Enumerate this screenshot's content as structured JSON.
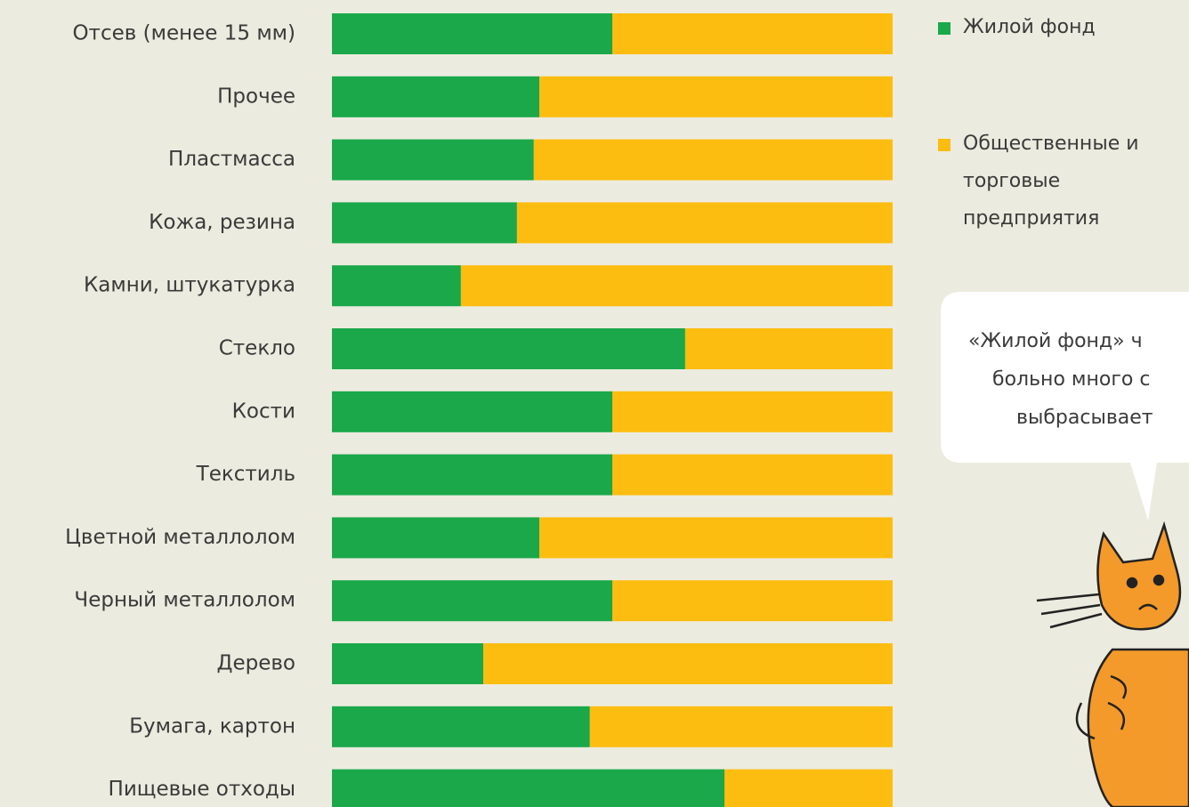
{
  "chart_data": {
    "type": "stacked_barh",
    "categories": [
      "Отсев (менее 15 мм)",
      "Прочее",
      "Пластмасса",
      "Кожа, резина",
      "Камни, штукатурка",
      "Стекло",
      "Кости",
      "Текстиль",
      "Цветной металлолом",
      "Черный металлолом",
      "Дерево",
      "Бумага, картон",
      "Пищевые отходы"
    ],
    "series": [
      {
        "name": "Жилой фонд",
        "color": "#1aa84a",
        "values": [
          50,
          37,
          36,
          33,
          23,
          63,
          50,
          50,
          37,
          50,
          27,
          46,
          70
        ]
      },
      {
        "name": "Общественные и торговые предприятия",
        "color": "#fdbd10",
        "values": [
          50,
          63,
          64,
          67,
          77,
          37,
          50,
          50,
          63,
          50,
          73,
          54,
          30
        ]
      }
    ],
    "xlim": [
      0,
      100
    ],
    "annotation": [
      "«Жилой фонд» ч",
      "больно много с",
      "выбрасывает"
    ]
  }
}
